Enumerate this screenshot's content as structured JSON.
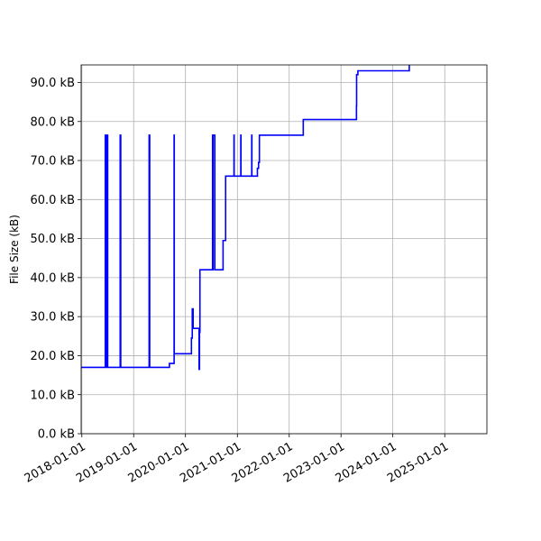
{
  "chart_data": {
    "type": "line",
    "title": "",
    "xlabel": "",
    "ylabel": "File Size (kB)",
    "x_axis_type": "date",
    "xlim": [
      "2017-12-27",
      "2025-10-25"
    ],
    "ylim": [
      0,
      94.5
    ],
    "grid": true,
    "legend": "none",
    "x_ticks": [
      "2018-01-01",
      "2019-01-01",
      "2020-01-01",
      "2021-01-01",
      "2022-01-01",
      "2023-01-01",
      "2024-01-01",
      "2025-01-01"
    ],
    "x_tick_labels": [
      "2018-01-01",
      "2019-01-01",
      "2020-01-01",
      "2021-01-01",
      "2022-01-01",
      "2023-01-01",
      "2024-01-01",
      "2025-01-01"
    ],
    "y_ticks": [
      0,
      10,
      20,
      30,
      40,
      50,
      60,
      70,
      80,
      90
    ],
    "y_tick_labels": [
      "0.0 kB",
      "10.0 kB",
      "20.0 kB",
      "30.0 kB",
      "40.0 kB",
      "50.0 kB",
      "60.0 kB",
      "70.0 kB",
      "80.0 kB",
      "90.0 kB"
    ],
    "series": [
      {
        "color": "#0000ff",
        "step": "post",
        "x": [
          "2017-12-27",
          "2018-06-15",
          "2018-06-16",
          "2018-06-18",
          "2018-06-19",
          "2018-06-21",
          "2018-06-22",
          "2018-06-24",
          "2018-06-25",
          "2018-06-28",
          "2018-06-29",
          "2018-07-01",
          "2018-07-02",
          "2018-09-28",
          "2018-09-29",
          "2018-10-01",
          "2018-10-02",
          "2019-04-20",
          "2019-04-21",
          "2019-04-23",
          "2019-04-24",
          "2019-09-10",
          "2019-09-11",
          "2019-10-13",
          "2019-10-14",
          "2019-10-16",
          "2019-10-17",
          "2020-02-12",
          "2020-02-18",
          "2020-02-24",
          "2020-04-05",
          "2020-04-06",
          "2020-04-08",
          "2020-04-09",
          "2020-04-11",
          "2020-04-12",
          "2020-04-14",
          "2020-04-15",
          "2020-07-10",
          "2020-07-11",
          "2020-07-13",
          "2020-07-14",
          "2020-07-26",
          "2020-07-27",
          "2020-07-29",
          "2020-07-30",
          "2020-09-22",
          "2020-10-10",
          "2020-12-08",
          "2020-12-09",
          "2020-12-11",
          "2020-12-12",
          "2021-01-25",
          "2021-01-26",
          "2021-01-28",
          "2021-01-29",
          "2021-04-12",
          "2021-04-13",
          "2021-04-15",
          "2021-04-16",
          "2021-05-22",
          "2021-05-30",
          "2021-06-05",
          "2022-04-10",
          "2023-04-20",
          "2023-04-21",
          "2023-04-24",
          "2023-04-30",
          "2024-04-26"
        ],
        "y": [
          17,
          76.5,
          17,
          76.5,
          17,
          76.5,
          17,
          76.5,
          17,
          76.5,
          17,
          76.5,
          17,
          76.5,
          17,
          76.5,
          17,
          76.5,
          17,
          76.5,
          17,
          18,
          18,
          76.5,
          20.5,
          20.5,
          20.5,
          24.5,
          32,
          27,
          27,
          16.5,
          16.5,
          26,
          26,
          42,
          42,
          42,
          76.5,
          42,
          42,
          76.5,
          42,
          42,
          42,
          42,
          49.5,
          66,
          76.5,
          66,
          66,
          66,
          76.5,
          66,
          66,
          66,
          76.5,
          66,
          66,
          66,
          68,
          69.5,
          76.5,
          80.5,
          84,
          92,
          92,
          93,
          94.5
        ]
      }
    ]
  }
}
